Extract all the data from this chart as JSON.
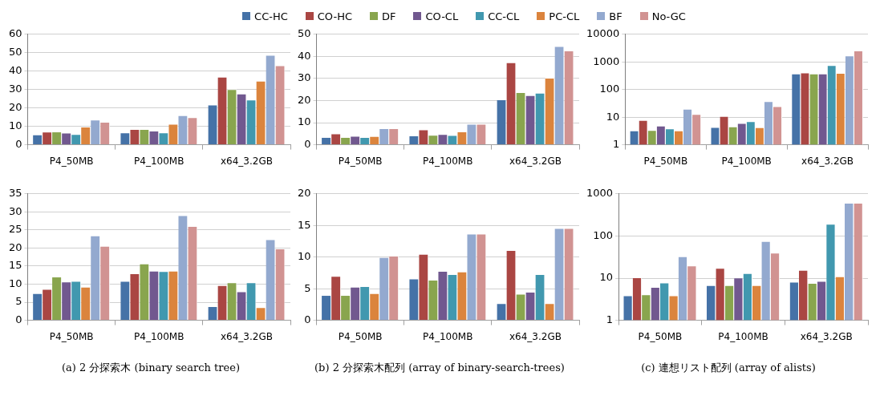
{
  "chart_data": [
    {
      "type": "bar",
      "categories": [
        "P4_50MB",
        "P4_100MB",
        "x64_3.2GB"
      ],
      "ylim": [
        0,
        60
      ],
      "yticks": [
        0,
        10,
        20,
        30,
        40,
        50,
        60
      ],
      "grid": "y",
      "legend": "top",
      "series": [
        {
          "name": "CC-HC",
          "color": "#4572a7",
          "values": [
            5.6,
            6.7,
            21.8
          ]
        },
        {
          "name": "CO-HC",
          "color": "#aa4643",
          "values": [
            7.1,
            8.5,
            36.9
          ]
        },
        {
          "name": "DF",
          "color": "#89a54e",
          "values": [
            7.2,
            8.5,
            30.2
          ]
        },
        {
          "name": "CO-CL",
          "color": "#71588f",
          "values": [
            6.6,
            7.7,
            27.8
          ]
        },
        {
          "name": "CC-CL",
          "color": "#4198af",
          "values": [
            5.8,
            6.7,
            24.5
          ]
        },
        {
          "name": "PC-CL",
          "color": "#db843d",
          "values": [
            9.8,
            11.4,
            34.8
          ]
        },
        {
          "name": "BF",
          "color": "#93a9cf",
          "values": [
            13.6,
            16,
            48.8
          ]
        },
        {
          "name": "No-GC",
          "color": "#d19392",
          "values": [
            12.5,
            15,
            43.2
          ]
        }
      ]
    },
    {
      "type": "bar",
      "categories": [
        "P4_50MB",
        "P4_100MB",
        "x64_3.2GB"
      ],
      "ylim": [
        0,
        50
      ],
      "yticks": [
        0,
        10,
        20,
        30,
        40,
        50
      ],
      "grid": "y",
      "series": [
        {
          "color": "#4572a7",
          "values": [
            3.5,
            4.2,
            20.5
          ]
        },
        {
          "color": "#aa4643",
          "values": [
            5.1,
            6.9,
            37.3
          ]
        },
        {
          "color": "#89a54e",
          "values": [
            3.5,
            4.5,
            23.8
          ]
        },
        {
          "color": "#71588f",
          "values": [
            4,
            4.8,
            22.4
          ]
        },
        {
          "color": "#4198af",
          "values": [
            3.5,
            4.4,
            23.5
          ]
        },
        {
          "color": "#db843d",
          "values": [
            3.9,
            6,
            30.3
          ]
        },
        {
          "color": "#93a9cf",
          "values": [
            7.5,
            9.5,
            44.7
          ]
        },
        {
          "color": "#d19392",
          "values": [
            7.5,
            9.5,
            42.7
          ]
        }
      ]
    },
    {
      "type": "bar",
      "categories": [
        "P4_50MB",
        "P4_100MB",
        "x64_3.2GB"
      ],
      "log": true,
      "ylim": [
        1,
        10000
      ],
      "yticks": [
        1,
        10,
        100,
        1000,
        10000
      ],
      "grid": "y",
      "series": [
        {
          "color": "#4572a7",
          "values": [
            3.3,
            4.4,
            380
          ]
        },
        {
          "color": "#aa4643",
          "values": [
            7.8,
            11,
            410
          ]
        },
        {
          "color": "#89a54e",
          "values": [
            3.4,
            4.6,
            380
          ]
        },
        {
          "color": "#71588f",
          "values": [
            4.9,
            6.1,
            380
          ]
        },
        {
          "color": "#4198af",
          "values": [
            3.9,
            7.1,
            760
          ]
        },
        {
          "color": "#db843d",
          "values": [
            3.3,
            4.3,
            400
          ]
        },
        {
          "color": "#93a9cf",
          "values": [
            20,
            38,
            1700
          ]
        },
        {
          "color": "#d19392",
          "values": [
            13,
            25,
            2600
          ]
        }
      ]
    },
    {
      "type": "bar",
      "categories": [
        "P4_50MB",
        "P4_100MB",
        "x64_3.2GB"
      ],
      "ylim": [
        0,
        35
      ],
      "yticks": [
        0,
        5,
        10,
        15,
        20,
        25,
        30,
        35
      ],
      "grid": "y",
      "annotations": [
        "(a) 2 分探索木 (binary search tree)"
      ],
      "series": [
        {
          "color": "#4572a7",
          "values": [
            7.5,
            10.9,
            3.9
          ]
        },
        {
          "color": "#aa4643",
          "values": [
            8.7,
            13,
            9.7
          ]
        },
        {
          "color": "#89a54e",
          "values": [
            12.1,
            15.7,
            10.5
          ]
        },
        {
          "color": "#71588f",
          "values": [
            10.7,
            13.7,
            8
          ]
        },
        {
          "color": "#4198af",
          "values": [
            10.9,
            13.6,
            10.5
          ]
        },
        {
          "color": "#db843d",
          "values": [
            9.3,
            13.7,
            3.6
          ]
        },
        {
          "color": "#93a9cf",
          "values": [
            23.5,
            29.1,
            22.4
          ]
        },
        {
          "color": "#d19392",
          "values": [
            20.6,
            26.1,
            19.9
          ]
        }
      ]
    },
    {
      "type": "bar",
      "categories": [
        "P4_50MB",
        "P4_100MB",
        "x64_3.2GB"
      ],
      "ylim": [
        0,
        20
      ],
      "yticks": [
        0,
        5,
        10,
        15,
        20
      ],
      "grid": "y",
      "annotations": [
        "(b) 2 分探索木配列 (array of binary-search-trees)"
      ],
      "series": [
        {
          "color": "#4572a7",
          "values": [
            4,
            6.6,
            2.7
          ]
        },
        {
          "color": "#aa4643",
          "values": [
            7,
            10.5,
            11.1
          ]
        },
        {
          "color": "#89a54e",
          "values": [
            4,
            6.4,
            4.2
          ]
        },
        {
          "color": "#71588f",
          "values": [
            5.3,
            7.8,
            4.5
          ]
        },
        {
          "color": "#4198af",
          "values": [
            5.4,
            7.3,
            7.3
          ]
        },
        {
          "color": "#db843d",
          "values": [
            4.3,
            7.7,
            2.7
          ]
        },
        {
          "color": "#93a9cf",
          "values": [
            10,
            13.7,
            14.6
          ]
        },
        {
          "color": "#d19392",
          "values": [
            10.2,
            13.7,
            14.6
          ]
        }
      ]
    },
    {
      "type": "bar",
      "categories": [
        "P4_50MB",
        "P4_100MB",
        "x64_3.2GB"
      ],
      "log": true,
      "ylim": [
        1,
        1000
      ],
      "yticks": [
        1,
        10,
        100,
        1000
      ],
      "grid": "y",
      "annotations": [
        "(c) 連想リスト配列 (array of alists)"
      ],
      "series": [
        {
          "color": "#4572a7",
          "values": [
            3.9,
            6.8,
            8.2
          ]
        },
        {
          "color": "#aa4643",
          "values": [
            10.5,
            17.5,
            15.7
          ]
        },
        {
          "color": "#89a54e",
          "values": [
            4.1,
            6.8,
            7.7
          ]
        },
        {
          "color": "#71588f",
          "values": [
            6.2,
            10.3,
            8.6
          ]
        },
        {
          "color": "#4198af",
          "values": [
            7.9,
            13.1,
            194
          ]
        },
        {
          "color": "#db843d",
          "values": [
            3.9,
            6.8,
            11
          ]
        },
        {
          "color": "#93a9cf",
          "values": [
            33,
            76,
            610
          ]
        },
        {
          "color": "#d19392",
          "values": [
            20,
            40,
            610
          ]
        }
      ]
    }
  ]
}
